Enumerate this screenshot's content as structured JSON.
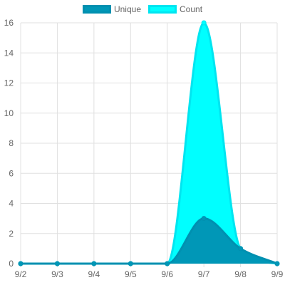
{
  "colors": {
    "unique_fill": "#0097b7",
    "unique_stroke": "#0090b0",
    "count_fill": "#00ffff",
    "count_stroke": "#00e5f0",
    "grid": "#e0e0e0",
    "text": "#666666"
  },
  "chart_data": {
    "type": "area",
    "categories": [
      "9/2",
      "9/3",
      "9/4",
      "9/5",
      "9/6",
      "9/7",
      "9/8",
      "9/9"
    ],
    "series": [
      {
        "name": "Unique",
        "values": [
          0,
          0,
          0,
          0,
          0,
          3,
          1,
          0
        ]
      },
      {
        "name": "Count",
        "values": [
          0,
          0,
          0,
          0,
          0,
          16,
          1,
          0
        ]
      }
    ],
    "ylim": [
      0,
      16
    ],
    "yticks": [
      0,
      2,
      4,
      6,
      8,
      10,
      12,
      14,
      16
    ],
    "grid": true,
    "legend": "top-center",
    "title": "",
    "xlabel": "",
    "ylabel": ""
  }
}
